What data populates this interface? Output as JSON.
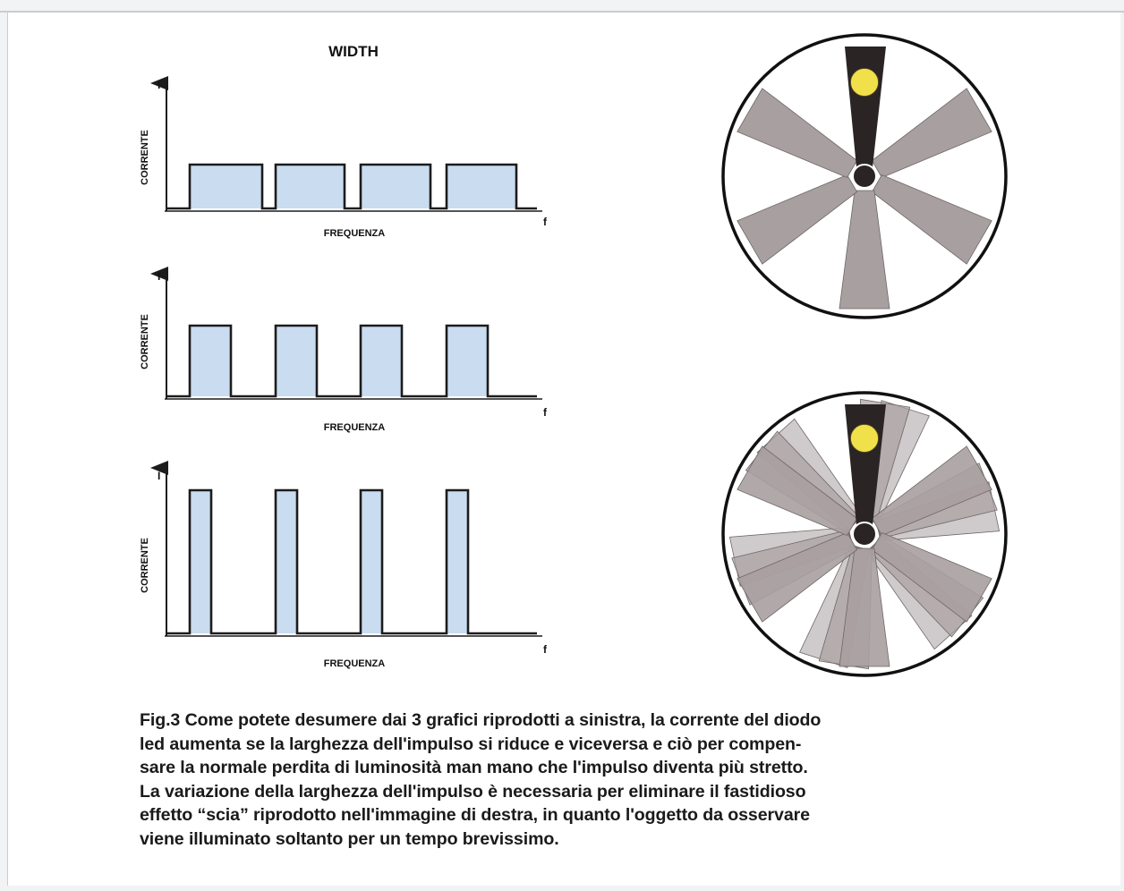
{
  "title": "WIDTH",
  "graphs": [
    {
      "y_axis_symbol": "I",
      "y_label": "CORRENTE",
      "x_axis_symbol": "f",
      "x_label": "FREQUENZA",
      "pulse_level": "medium",
      "pulse_width": "wide"
    },
    {
      "y_axis_symbol": "I",
      "y_label": "CORRENTE",
      "x_axis_symbol": "f",
      "x_label": "FREQUENZA",
      "pulse_level": "high",
      "pulse_width": "medium"
    },
    {
      "y_axis_symbol": "I",
      "y_label": "CORRENTE",
      "x_axis_symbol": "f",
      "x_label": "FREQUENZA",
      "pulse_level": "highest",
      "pulse_width": "narrow"
    }
  ],
  "wheel_diagrams": [
    {
      "description": "single",
      "trail": "none"
    },
    {
      "description": "with trail",
      "trail": "scia"
    }
  ],
  "colors": {
    "pulse_fill": "#c9dcf0",
    "line": "#1c1c1c",
    "blade": "#a89fa0",
    "blade_edge": "#6e6666",
    "indicator": "#2b2424",
    "led": "#f0e04a"
  },
  "caption_lines": [
    "Fig.3 Come potete desumere dai 3 grafici riprodotti a sinistra, la corrente del diodo",
    "led aumenta se la larghezza dell'impulso si riduce e viceversa e ciò per compen-",
    "sare la normale perdita di luminosità man mano che l'impulso diventa più stretto.",
    "La variazione della larghezza dell'impulso è necessaria per eliminare il fastidioso",
    "effetto “scia” riprodotto nell'immagine di destra, in quanto l'oggetto da osservare",
    "viene illuminato soltanto per un tempo brevissimo."
  ]
}
